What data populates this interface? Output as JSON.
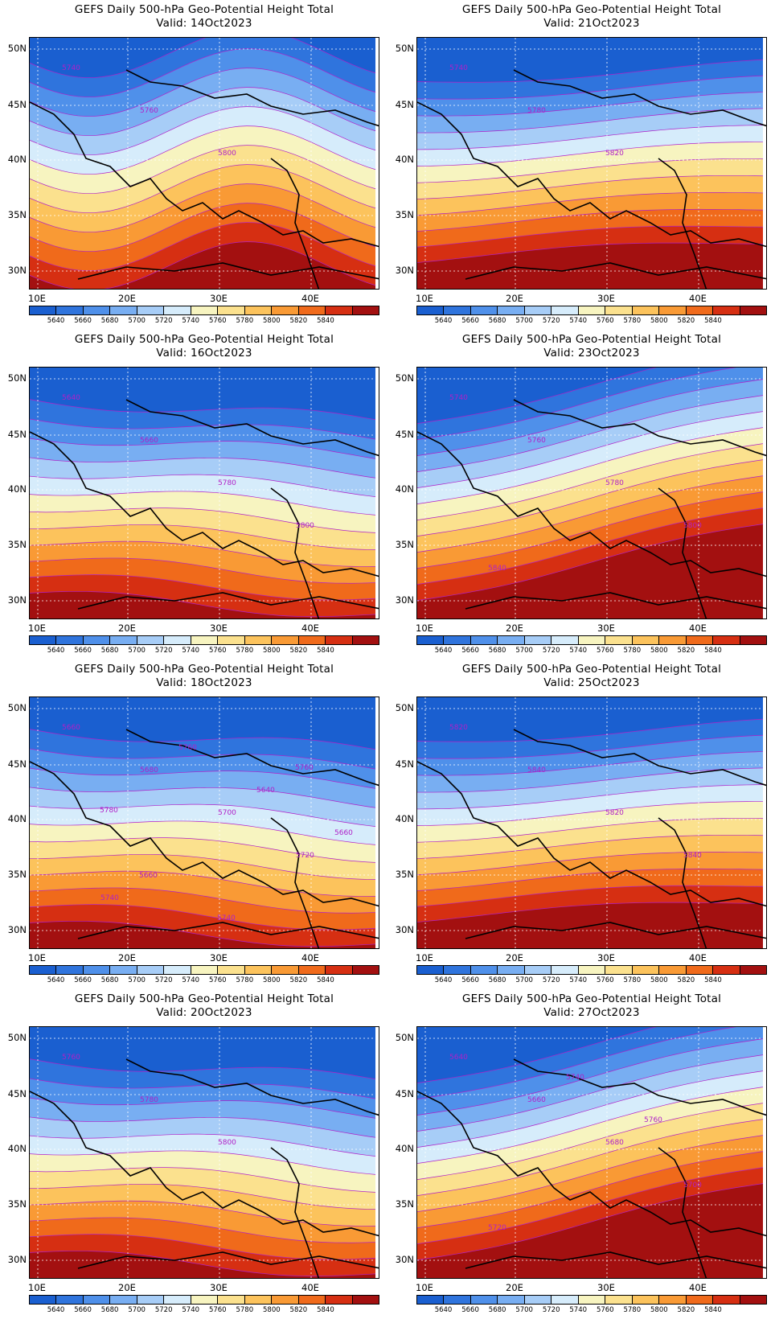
{
  "title_line": "GEFS Daily 500-hPa Geo-Potential Height Total",
  "panels": [
    {
      "valid": "Valid: 14Oct2023",
      "style": "ridge",
      "contour_labels": [
        "5740",
        "5760",
        "5800"
      ]
    },
    {
      "valid": "Valid: 21Oct2023",
      "style": "zonal-south",
      "contour_labels": [
        "5740",
        "5780",
        "5820"
      ]
    },
    {
      "valid": "Valid: 16Oct2023",
      "style": "zonal-mid",
      "contour_labels": [
        "5640",
        "5660",
        "5780",
        "5800"
      ]
    },
    {
      "valid": "Valid: 23Oct2023",
      "style": "sw-ne",
      "contour_labels": [
        "5740",
        "5760",
        "5780",
        "5800",
        "5840"
      ]
    },
    {
      "valid": "Valid: 18Oct2023",
      "style": "zonal-mid",
      "contour_labels": [
        "5660",
        "5680",
        "5700",
        "5720",
        "5740",
        "5760",
        "5640",
        "5660",
        "5660",
        "5740",
        "5760",
        "5780"
      ]
    },
    {
      "valid": "Valid: 25Oct2023",
      "style": "zonal-south",
      "contour_labels": [
        "5820",
        "5840",
        "5820",
        "5840"
      ]
    },
    {
      "valid": "Valid: 20Oct2023",
      "style": "zonal-mid",
      "contour_labels": [
        "5760",
        "5780",
        "5800"
      ]
    },
    {
      "valid": "Valid: 27Oct2023",
      "style": "sw-ne",
      "contour_labels": [
        "5640",
        "5660",
        "5680",
        "5700",
        "5720",
        "5740",
        "5760"
      ]
    }
  ],
  "lat_labels": [
    "50N",
    "45N",
    "40N",
    "35N",
    "30N"
  ],
  "lon_labels": [
    "10E",
    "20E",
    "30E",
    "40E"
  ],
  "colorbar": {
    "labels": [
      "5640",
      "5660",
      "5680",
      "5700",
      "5720",
      "5740",
      "5760",
      "5780",
      "5800",
      "5820",
      "5840"
    ],
    "colors": [
      "#1a5fd0",
      "#2f74dd",
      "#4f90ea",
      "#78aef2",
      "#a7cdf7",
      "#d6ecfb",
      "#f7f4c0",
      "#fbe18e",
      "#fcc35c",
      "#f99a35",
      "#f06a1b",
      "#d62f12",
      "#a31010"
    ]
  },
  "contour_color": "#b020c8"
}
